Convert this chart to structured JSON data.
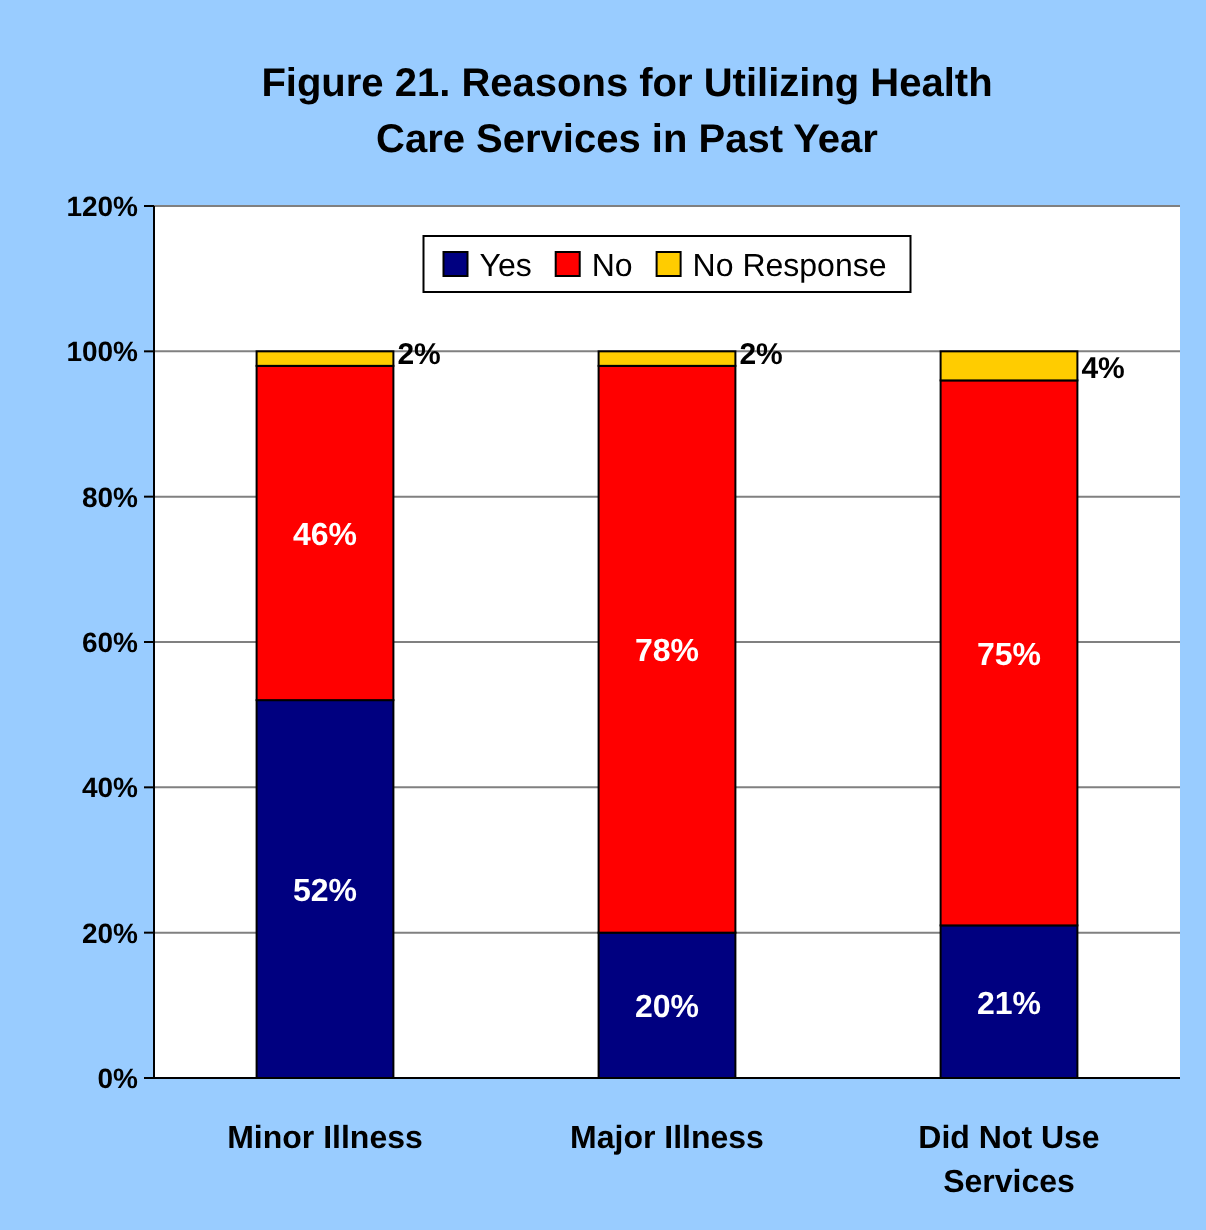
{
  "chart_data": {
    "type": "bar",
    "title": "Figure 21. Reasons for Utilizing Health Care Services in Past Year",
    "categories": [
      "Minor Illness",
      "Major Illness",
      "Did Not Use Services"
    ],
    "stacked": true,
    "series": [
      {
        "name": "Yes",
        "color": "#000080",
        "values": [
          52,
          20,
          21
        ],
        "value_labels": [
          "52%",
          "20%",
          "21%"
        ]
      },
      {
        "name": "No",
        "color": "#ff0000",
        "values": [
          46,
          78,
          75
        ],
        "value_labels": [
          "46%",
          "78%",
          "75%"
        ]
      },
      {
        "name": "No Response",
        "color": "#ffcc00",
        "values": [
          2,
          2,
          4
        ],
        "value_labels": [
          "2%",
          "2%",
          "4%"
        ]
      }
    ],
    "ylim": [
      0,
      120
    ],
    "yticks": [
      {
        "value": 0,
        "label": "0%"
      },
      {
        "value": 20,
        "label": "20%"
      },
      {
        "value": 40,
        "label": "40%"
      },
      {
        "value": 60,
        "label": "60%"
      },
      {
        "value": 80,
        "label": "80%"
      },
      {
        "value": 100,
        "label": "100%"
      },
      {
        "value": 120,
        "label": "120%"
      }
    ],
    "grid": "y",
    "legend": "top"
  }
}
